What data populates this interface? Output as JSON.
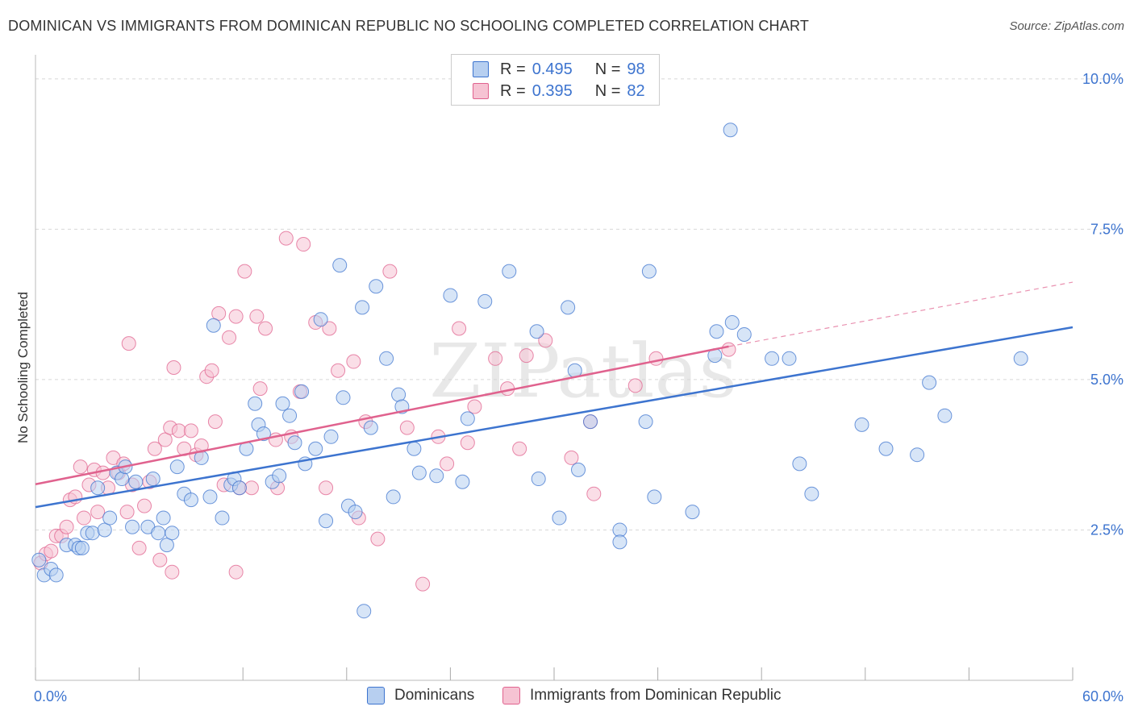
{
  "title": "DOMINICAN VS IMMIGRANTS FROM DOMINICAN REPUBLIC NO SCHOOLING COMPLETED CORRELATION CHART",
  "source": "Source: ZipAtlas.com",
  "colors": {
    "blue": "#3d74cf",
    "blue_fill": "#b7cff0",
    "pink": "#e0628e",
    "pink_fill": "#f6c3d3",
    "grid": "#d8d8d8",
    "axis_label": "#3d74cf"
  },
  "legend": {
    "rows": [
      {
        "r_label": "R =",
        "r_value": "0.495",
        "n_label": "N =",
        "n_value": "98"
      },
      {
        "r_label": "R =",
        "r_value": "0.395",
        "n_label": "N =",
        "n_value": "82"
      }
    ]
  },
  "watermark": "ZIPatlas",
  "chart_data": {
    "type": "scatter",
    "ylabel": "No Schooling Completed",
    "xlabel": "",
    "xlim": [
      0,
      60
    ],
    "ylim": [
      0,
      10.4
    ],
    "x_tick_labels": [
      "0.0%",
      "60.0%"
    ],
    "y_ticks": [
      2.5,
      5.0,
      7.5,
      10.0
    ],
    "y_tick_labels": [
      "2.5%",
      "5.0%",
      "7.5%",
      "10.0%"
    ],
    "grid": true,
    "legend_position": "top-center",
    "series": [
      {
        "name": "Dominicans",
        "color": "#3d74cf",
        "trend": {
          "x": [
            0,
            60
          ],
          "y": [
            2.88,
            5.87
          ],
          "dashed_from": null
        },
        "points": [
          [
            0.2,
            2.0
          ],
          [
            0.5,
            1.75
          ],
          [
            0.9,
            1.85
          ],
          [
            1.2,
            1.75
          ],
          [
            1.8,
            2.25
          ],
          [
            2.3,
            2.25
          ],
          [
            2.5,
            2.2
          ],
          [
            2.7,
            2.2
          ],
          [
            3.0,
            2.45
          ],
          [
            3.3,
            2.45
          ],
          [
            3.6,
            3.2
          ],
          [
            4.0,
            2.5
          ],
          [
            4.3,
            2.7
          ],
          [
            4.7,
            3.45
          ],
          [
            5.0,
            3.35
          ],
          [
            5.2,
            3.55
          ],
          [
            5.6,
            2.55
          ],
          [
            5.8,
            3.3
          ],
          [
            6.5,
            2.55
          ],
          [
            6.8,
            3.35
          ],
          [
            7.1,
            2.45
          ],
          [
            7.4,
            2.7
          ],
          [
            7.6,
            2.25
          ],
          [
            7.9,
            2.45
          ],
          [
            8.2,
            3.55
          ],
          [
            8.6,
            3.1
          ],
          [
            9.0,
            3.0
          ],
          [
            9.6,
            3.7
          ],
          [
            10.1,
            3.05
          ],
          [
            10.3,
            5.9
          ],
          [
            10.8,
            2.7
          ],
          [
            11.3,
            3.25
          ],
          [
            11.5,
            3.35
          ],
          [
            11.8,
            3.2
          ],
          [
            12.2,
            3.85
          ],
          [
            12.7,
            4.6
          ],
          [
            12.9,
            4.25
          ],
          [
            13.2,
            4.1
          ],
          [
            13.7,
            3.3
          ],
          [
            14.1,
            3.4
          ],
          [
            14.3,
            4.6
          ],
          [
            14.7,
            4.4
          ],
          [
            15.0,
            3.95
          ],
          [
            15.4,
            4.8
          ],
          [
            15.6,
            3.6
          ],
          [
            16.2,
            3.85
          ],
          [
            16.5,
            6.0
          ],
          [
            16.8,
            2.65
          ],
          [
            17.1,
            4.05
          ],
          [
            17.6,
            6.9
          ],
          [
            17.8,
            4.7
          ],
          [
            18.1,
            2.9
          ],
          [
            18.5,
            2.8
          ],
          [
            18.9,
            6.2
          ],
          [
            19.0,
            1.15
          ],
          [
            19.4,
            4.2
          ],
          [
            19.7,
            6.55
          ],
          [
            20.3,
            5.35
          ],
          [
            20.7,
            3.05
          ],
          [
            21.0,
            4.75
          ],
          [
            21.2,
            4.55
          ],
          [
            21.9,
            3.85
          ],
          [
            22.2,
            3.45
          ],
          [
            23.2,
            3.4
          ],
          [
            24.0,
            6.4
          ],
          [
            24.7,
            3.3
          ],
          [
            25.0,
            4.35
          ],
          [
            26.0,
            6.3
          ],
          [
            27.4,
            6.8
          ],
          [
            29.0,
            5.8
          ],
          [
            29.1,
            3.35
          ],
          [
            30.3,
            2.7
          ],
          [
            30.8,
            6.2
          ],
          [
            31.2,
            5.15
          ],
          [
            31.4,
            3.5
          ],
          [
            32.1,
            4.3
          ],
          [
            33.8,
            2.5
          ],
          [
            33.8,
            2.3
          ],
          [
            35.3,
            4.3
          ],
          [
            35.5,
            6.8
          ],
          [
            35.8,
            3.05
          ],
          [
            38.0,
            2.8
          ],
          [
            39.3,
            5.4
          ],
          [
            39.4,
            5.8
          ],
          [
            40.2,
            9.15
          ],
          [
            40.3,
            5.95
          ],
          [
            41.0,
            5.75
          ],
          [
            42.6,
            5.35
          ],
          [
            43.6,
            5.35
          ],
          [
            44.2,
            3.6
          ],
          [
            44.9,
            3.1
          ],
          [
            47.8,
            4.25
          ],
          [
            49.2,
            3.85
          ],
          [
            51.0,
            3.75
          ],
          [
            51.7,
            4.95
          ],
          [
            52.6,
            4.4
          ],
          [
            57.0,
            5.35
          ]
        ]
      },
      {
        "name": "Immigrants from Dominican Republic",
        "color": "#e0628e",
        "trend": {
          "x": [
            0,
            40.1
          ],
          "y": [
            3.26,
            5.55
          ],
          "dashed_to": [
            60,
            6.62
          ]
        },
        "points": [
          [
            0.3,
            1.95
          ],
          [
            0.6,
            2.1
          ],
          [
            0.9,
            2.15
          ],
          [
            1.2,
            2.4
          ],
          [
            1.5,
            2.4
          ],
          [
            1.8,
            2.55
          ],
          [
            2.0,
            3.0
          ],
          [
            2.3,
            3.05
          ],
          [
            2.6,
            3.55
          ],
          [
            2.8,
            2.7
          ],
          [
            3.1,
            3.25
          ],
          [
            3.4,
            3.5
          ],
          [
            3.6,
            2.8
          ],
          [
            3.9,
            3.45
          ],
          [
            4.2,
            3.2
          ],
          [
            4.5,
            3.7
          ],
          [
            4.8,
            3.45
          ],
          [
            5.1,
            3.6
          ],
          [
            5.3,
            2.8
          ],
          [
            5.6,
            3.25
          ],
          [
            5.4,
            5.6
          ],
          [
            6.0,
            2.2
          ],
          [
            6.3,
            2.9
          ],
          [
            6.6,
            3.3
          ],
          [
            6.9,
            3.85
          ],
          [
            7.2,
            2.0
          ],
          [
            7.5,
            4.0
          ],
          [
            7.8,
            4.2
          ],
          [
            7.9,
            1.8
          ],
          [
            8.0,
            5.2
          ],
          [
            8.3,
            4.15
          ],
          [
            8.6,
            3.85
          ],
          [
            9.0,
            4.15
          ],
          [
            9.3,
            3.75
          ],
          [
            9.6,
            3.9
          ],
          [
            9.9,
            5.05
          ],
          [
            10.2,
            5.15
          ],
          [
            10.4,
            4.3
          ],
          [
            10.6,
            6.1
          ],
          [
            10.9,
            3.25
          ],
          [
            11.2,
            5.7
          ],
          [
            11.6,
            1.8
          ],
          [
            11.8,
            3.2
          ],
          [
            11.6,
            6.05
          ],
          [
            12.1,
            6.8
          ],
          [
            12.5,
            3.2
          ],
          [
            12.8,
            6.05
          ],
          [
            13.0,
            4.85
          ],
          [
            13.3,
            5.85
          ],
          [
            13.9,
            4.0
          ],
          [
            14.0,
            3.2
          ],
          [
            14.5,
            7.35
          ],
          [
            14.8,
            4.05
          ],
          [
            15.3,
            4.8
          ],
          [
            15.5,
            7.25
          ],
          [
            16.2,
            5.95
          ],
          [
            16.8,
            3.2
          ],
          [
            17.0,
            5.85
          ],
          [
            17.5,
            5.15
          ],
          [
            18.4,
            5.3
          ],
          [
            18.7,
            2.7
          ],
          [
            19.1,
            4.3
          ],
          [
            19.8,
            2.35
          ],
          [
            20.5,
            6.8
          ],
          [
            21.5,
            4.2
          ],
          [
            22.4,
            1.6
          ],
          [
            23.3,
            4.05
          ],
          [
            23.8,
            3.6
          ],
          [
            24.5,
            5.85
          ],
          [
            25.0,
            3.95
          ],
          [
            25.4,
            4.55
          ],
          [
            26.6,
            5.35
          ],
          [
            27.3,
            4.85
          ],
          [
            28.0,
            3.85
          ],
          [
            28.4,
            5.4
          ],
          [
            29.5,
            5.65
          ],
          [
            31.0,
            3.7
          ],
          [
            32.1,
            4.3
          ],
          [
            32.3,
            3.1
          ],
          [
            34.7,
            4.9
          ],
          [
            35.9,
            5.35
          ],
          [
            40.1,
            5.5
          ]
        ]
      }
    ]
  },
  "bottom_legend": {
    "items": [
      {
        "label": "Dominicans"
      },
      {
        "label": "Immigrants from Dominican Republic"
      }
    ]
  }
}
